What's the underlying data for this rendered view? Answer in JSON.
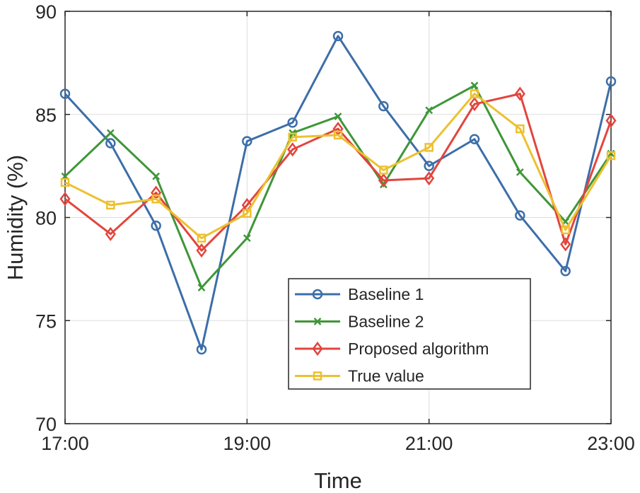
{
  "chart_data": {
    "type": "line",
    "title": "",
    "xlabel": "Time",
    "ylabel": "Humidity (%)",
    "x_tick_labels": [
      "17:00",
      "19:00",
      "21:00",
      "23:00"
    ],
    "x_tick_values": [
      17,
      19,
      21,
      23
    ],
    "y_ticks": [
      70,
      75,
      80,
      85,
      90
    ],
    "xlim": [
      17,
      23
    ],
    "ylim": [
      70,
      90
    ],
    "grid": true,
    "legend_position": "lower-right",
    "x": [
      17,
      17.5,
      18,
      18.5,
      19,
      19.5,
      20,
      20.5,
      21,
      21.5,
      22,
      22.5,
      23
    ],
    "series": [
      {
        "name": "Baseline 1",
        "color": "#3c6ea9",
        "marker": "circle",
        "values": [
          86.0,
          83.6,
          79.6,
          73.6,
          83.7,
          84.6,
          88.8,
          85.4,
          82.5,
          83.8,
          80.1,
          77.4,
          86.6
        ]
      },
      {
        "name": "Baseline 2",
        "color": "#3f9638",
        "marker": "x",
        "values": [
          82.0,
          84.1,
          82.0,
          76.6,
          79.0,
          84.1,
          84.9,
          81.6,
          85.2,
          86.4,
          82.2,
          79.8,
          83.1
        ]
      },
      {
        "name": "Proposed algorithm",
        "color": "#e2453e",
        "marker": "diamond",
        "values": [
          80.9,
          79.2,
          81.2,
          78.4,
          80.6,
          83.3,
          84.3,
          81.8,
          81.9,
          85.5,
          86.0,
          78.7,
          84.7
        ]
      },
      {
        "name": "True value",
        "color": "#ecc130",
        "marker": "square",
        "values": [
          81.7,
          80.6,
          80.9,
          79.0,
          80.2,
          83.9,
          84.0,
          82.3,
          83.4,
          86.0,
          84.3,
          79.4,
          83.0
        ]
      }
    ]
  }
}
